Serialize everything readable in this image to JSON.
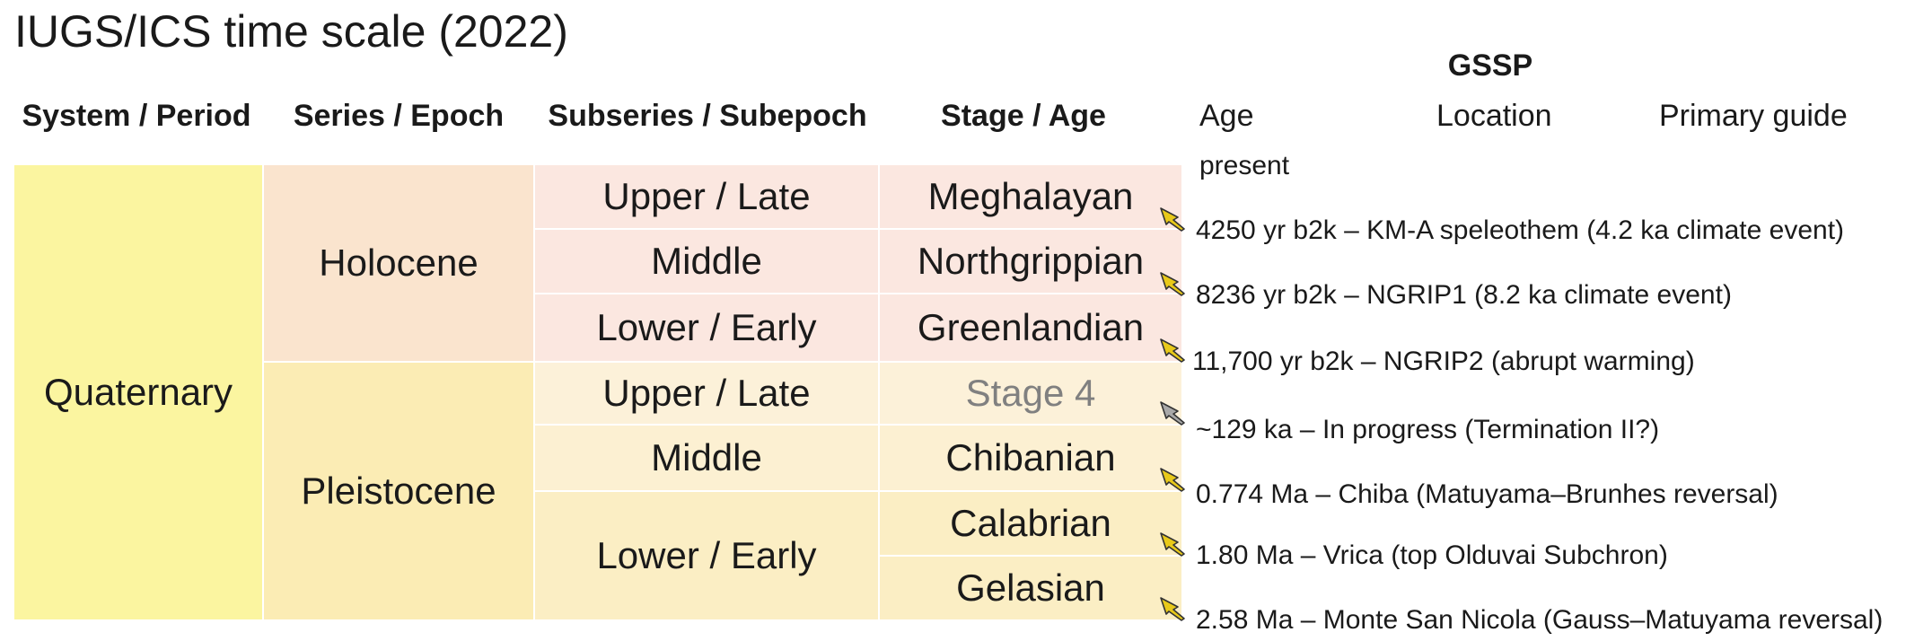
{
  "title": "IUGS/ICS time scale (2022)",
  "columns": {
    "system": "System / Period",
    "series": "Series / Epoch",
    "subseries": "Subseries / Subepoch",
    "stage": "Stage / Age"
  },
  "gssp": {
    "heading": "GSSP",
    "age_label": "Age",
    "location_label": "Location",
    "guide_label": "Primary guide",
    "top_label": "present"
  },
  "colors": {
    "quaternary": "#fbf5a0",
    "holocene": "#fae4ce",
    "pleistocene": "#fbecb4",
    "holocene_stage": "#fbe7e0",
    "upper_pleistocene": "#fcf1d9",
    "middle_pleistocene": "#fcf0d2",
    "lower_pleistocene": "#fbeec4",
    "golden_spike": "#e8c91a",
    "pending_spike": "#a8a8a8"
  },
  "system": {
    "name": "Quaternary"
  },
  "series": [
    {
      "name": "Holocene"
    },
    {
      "name": "Pleistocene"
    }
  ],
  "subseries": [
    {
      "name": "Upper / Late"
    },
    {
      "name": "Middle"
    },
    {
      "name": "Lower / Early"
    },
    {
      "name": "Upper / Late"
    },
    {
      "name": "Middle"
    },
    {
      "name": "Lower / Early"
    }
  ],
  "stages": [
    {
      "name": "Meghalayan",
      "pending": false
    },
    {
      "name": "Northgrippian",
      "pending": false
    },
    {
      "name": "Greenlandian",
      "pending": false
    },
    {
      "name": "Stage 4",
      "pending": true
    },
    {
      "name": "Chibanian",
      "pending": false
    },
    {
      "name": "Calabrian",
      "pending": false
    },
    {
      "name": "Gelasian",
      "pending": false
    }
  ],
  "boundaries": [
    {
      "text": "4250 yr b2k – KM-A speleothem (4.2 ka climate event)",
      "spike": "golden-spike-icon"
    },
    {
      "text": "8236 yr b2k – NGRIP1 (8.2 ka climate event)",
      "spike": "golden-spike-icon"
    },
    {
      "text": "11,700 yr b2k – NGRIP2 (abrupt warming)",
      "spike": "golden-spike-icon"
    },
    {
      "text": "~129 ka – In progress (Termination II?)",
      "spike": "pending-spike-icon"
    },
    {
      "text": "0.774 Ma – Chiba (Matuyama–Brunhes reversal)",
      "spike": "golden-spike-icon"
    },
    {
      "text": "1.80 Ma – Vrica (top Olduvai Subchron)",
      "spike": "golden-spike-icon"
    },
    {
      "text": "2.58 Ma – Monte San Nicola (Gauss–Matuyama reversal)",
      "spike": "golden-spike-icon"
    }
  ]
}
